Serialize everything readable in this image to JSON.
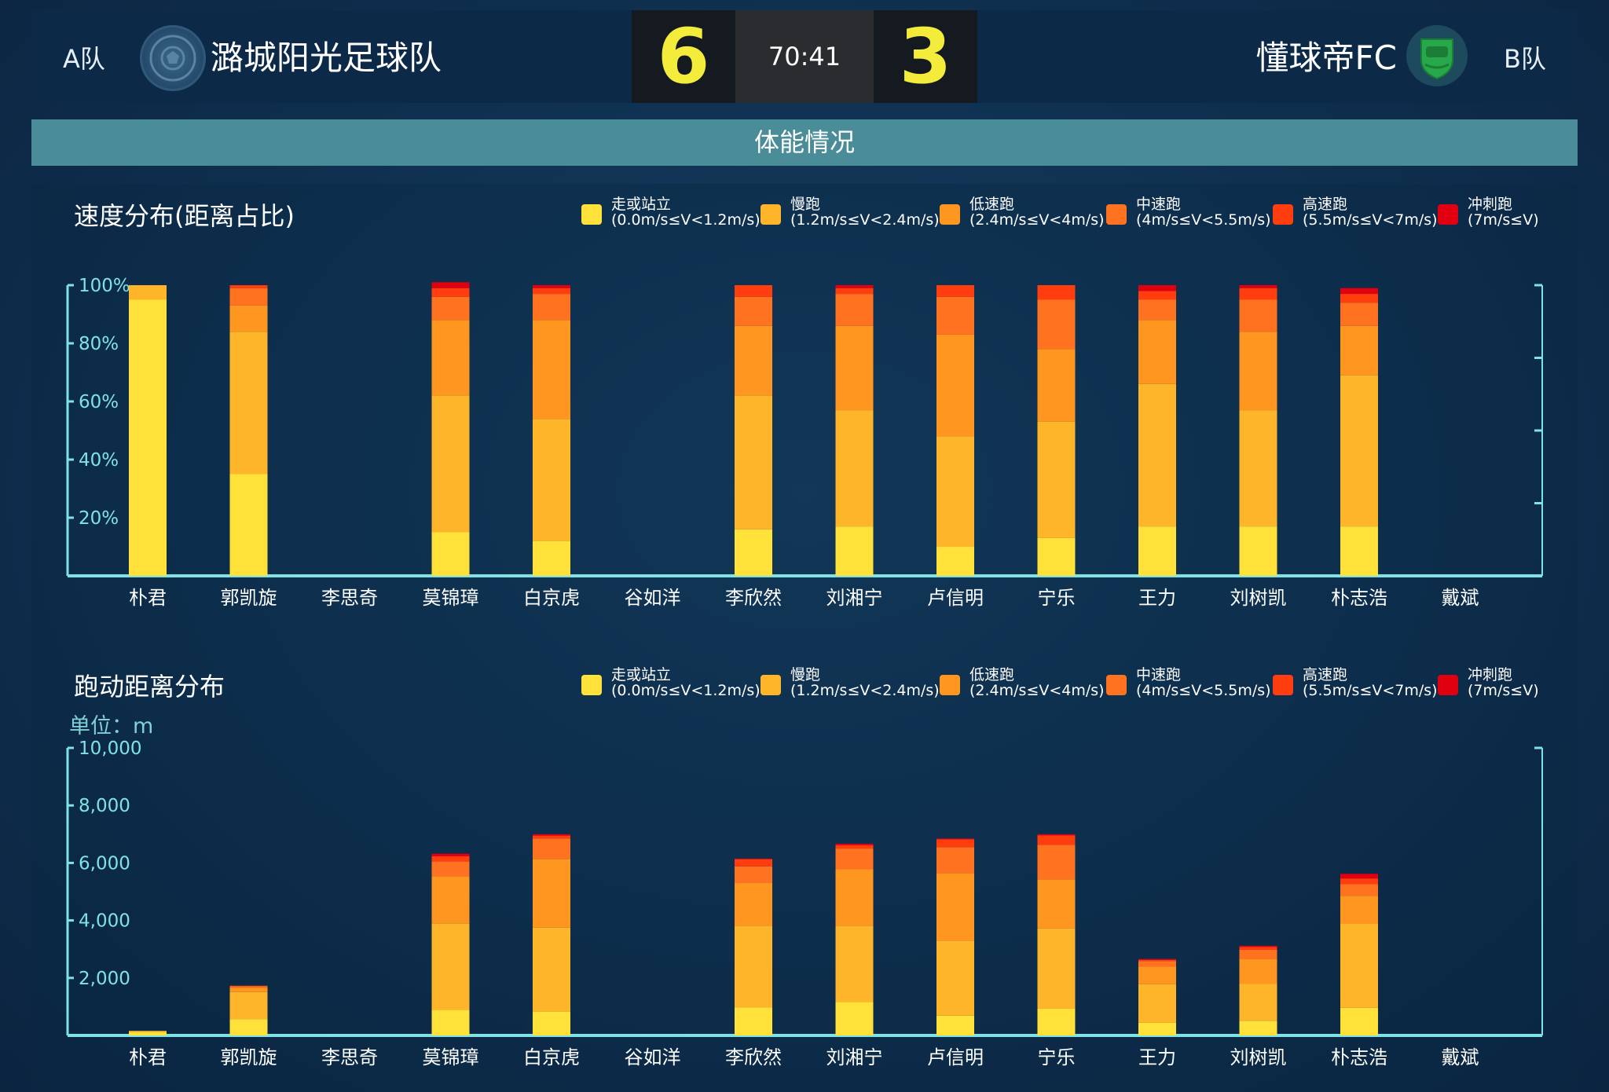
{
  "header": {
    "team_a_code": "A队",
    "team_a_name": "潞城阳光足球队",
    "score_a": "6",
    "clock": "70:41",
    "score_b": "3",
    "team_b_name": "懂球帝FC",
    "team_b_code": "B队"
  },
  "section_title": "体能情况",
  "legend": [
    {
      "name": "走或站立",
      "range": "(0.0m/s≤V<1.2m/s)",
      "color": "#ffe13a"
    },
    {
      "name": "慢跑",
      "range": "(1.2m/s≤V<2.4m/s)",
      "color": "#ffb52a"
    },
    {
      "name": "低速跑",
      "range": "(2.4m/s≤V<4m/s)",
      "color": "#ff961f"
    },
    {
      "name": "中速跑",
      "range": "(4m/s≤V<5.5m/s)",
      "color": "#ff7220"
    },
    {
      "name": "高速跑",
      "range": "(5.5m/s≤V<7m/s)",
      "color": "#ff3d0e"
    },
    {
      "name": "冲刺跑",
      "range": "(7m/s≤V)",
      "color": "#e00010"
    }
  ],
  "chart_data": [
    {
      "type": "bar",
      "stacked": true,
      "title": "速度分布(距离占比)",
      "categories": [
        "朴君",
        "郭凯旋",
        "李思奇",
        "莫锦璋",
        "白京虎",
        "谷如洋",
        "李欣然",
        "刘湘宁",
        "卢信明",
        "宁乐",
        "王力",
        "刘树凯",
        "朴志浩",
        "戴斌"
      ],
      "ylim": [
        0,
        100
      ],
      "yticks": [
        "20%",
        "40%",
        "60%",
        "80%",
        "100%"
      ],
      "series": [
        {
          "name": "走或站立",
          "values": [
            95,
            35,
            0,
            15,
            12,
            0,
            16,
            17,
            10,
            13,
            17,
            17,
            17,
            0
          ]
        },
        {
          "name": "慢跑",
          "values": [
            5,
            49,
            0,
            47,
            42,
            0,
            46,
            40,
            38,
            40,
            49,
            40,
            52,
            0
          ]
        },
        {
          "name": "低速跑",
          "values": [
            0,
            9,
            0,
            26,
            34,
            0,
            24,
            29,
            35,
            25,
            22,
            27,
            17,
            0
          ]
        },
        {
          "name": "中速跑",
          "values": [
            0,
            6,
            0,
            8,
            9,
            0,
            10,
            11,
            13,
            17,
            7,
            11,
            8,
            0
          ]
        },
        {
          "name": "高速跑",
          "values": [
            0,
            1,
            0,
            3,
            2,
            0,
            4,
            2,
            4,
            5,
            3,
            4,
            3,
            0
          ]
        },
        {
          "name": "冲刺跑",
          "values": [
            0,
            0,
            0,
            2,
            1,
            0,
            0,
            1,
            0,
            0,
            2,
            1,
            2,
            0
          ]
        }
      ]
    },
    {
      "type": "bar",
      "stacked": true,
      "title": "跑动距离分布",
      "unit": "单位：m",
      "categories": [
        "朴君",
        "郭凯旋",
        "李思奇",
        "莫锦璋",
        "白京虎",
        "谷如洋",
        "李欣然",
        "刘湘宁",
        "卢信明",
        "宁乐",
        "王力",
        "刘树凯",
        "朴志浩",
        "戴斌"
      ],
      "ylim": [
        0,
        10000
      ],
      "yticks": [
        "2,000",
        "4,000",
        "6,000",
        "8,000",
        "10,000"
      ],
      "series": [
        {
          "name": "走或站立",
          "values": [
            130,
            570,
            0,
            890,
            830,
            0,
            980,
            1160,
            690,
            930,
            440,
            510,
            960,
            0
          ]
        },
        {
          "name": "慢跑",
          "values": [
            30,
            940,
            0,
            3000,
            2920,
            0,
            2840,
            2660,
            2600,
            2790,
            1340,
            1280,
            2920,
            0
          ]
        },
        {
          "name": "低速跑",
          "values": [
            0,
            150,
            0,
            1650,
            2390,
            0,
            1480,
            1960,
            2360,
            1710,
            610,
            860,
            980,
            0
          ]
        },
        {
          "name": "中速跑",
          "values": [
            0,
            50,
            0,
            510,
            710,
            0,
            580,
            720,
            900,
            1200,
            200,
            330,
            400,
            0
          ]
        },
        {
          "name": "高速跑",
          "values": [
            0,
            20,
            0,
            180,
            100,
            0,
            250,
            120,
            270,
            330,
            40,
            100,
            200,
            0
          ]
        },
        {
          "name": "冲刺跑",
          "values": [
            0,
            0,
            0,
            90,
            50,
            0,
            20,
            50,
            30,
            40,
            30,
            40,
            160,
            0
          ]
        }
      ]
    }
  ]
}
